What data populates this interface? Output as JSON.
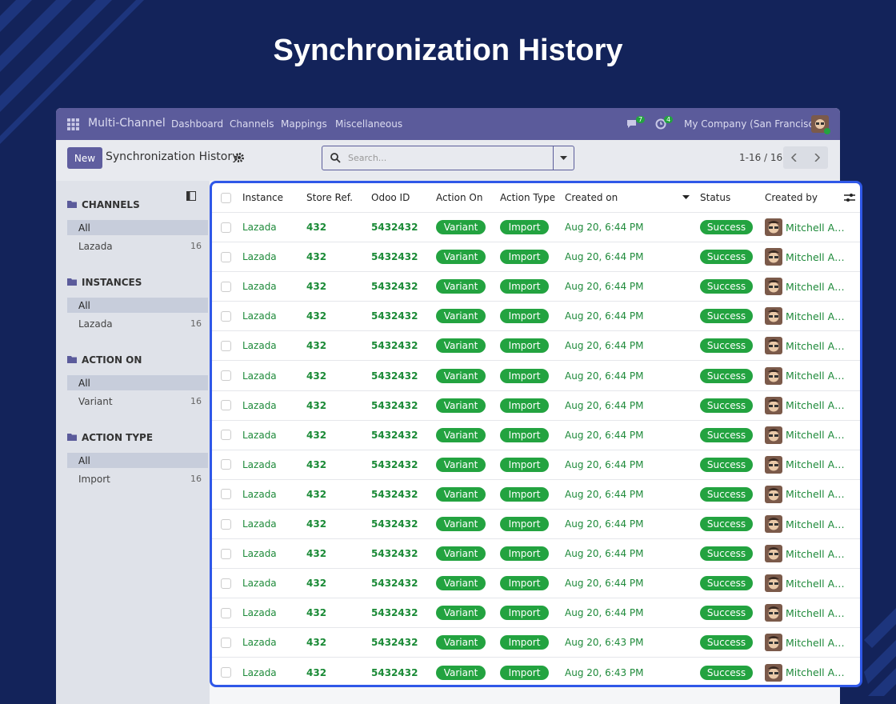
{
  "title": "Synchronization History",
  "navbar": {
    "app": "Multi-Channel",
    "menu": [
      "Dashboard",
      "Channels",
      "Mappings",
      "Miscellaneous"
    ],
    "messages_badge": 7,
    "activities_badge": 4,
    "company": "My Company (San Francisco)"
  },
  "control": {
    "new_button": "New",
    "breadcrumb": "Synchronization History",
    "search_placeholder": "Search...",
    "pager": "1-16 / 16"
  },
  "sidebar": [
    {
      "title": "CHANNELS",
      "items": [
        {
          "label": "All"
        },
        {
          "label": "Lazada",
          "count": 16
        }
      ]
    },
    {
      "title": "INSTANCES",
      "items": [
        {
          "label": "All"
        },
        {
          "label": "Lazada",
          "count": 16
        }
      ]
    },
    {
      "title": "ACTION ON",
      "items": [
        {
          "label": "All"
        },
        {
          "label": "Variant",
          "count": 16
        }
      ]
    },
    {
      "title": "ACTION TYPE",
      "items": [
        {
          "label": "All"
        },
        {
          "label": "Import",
          "count": 16
        }
      ]
    }
  ],
  "table": {
    "columns": [
      "Instance",
      "Store Ref.",
      "Odoo ID",
      "Action On",
      "Action Type",
      "Created on",
      "Status",
      "Created by"
    ],
    "rows": [
      [
        "Lazada",
        "432",
        "5432432",
        "Variant",
        "Import",
        "Aug 20, 6:44 PM",
        "Success",
        "Mitchell A…"
      ],
      [
        "Lazada",
        "432",
        "5432432",
        "Variant",
        "Import",
        "Aug 20, 6:44 PM",
        "Success",
        "Mitchell A…"
      ],
      [
        "Lazada",
        "432",
        "5432432",
        "Variant",
        "Import",
        "Aug 20, 6:44 PM",
        "Success",
        "Mitchell A…"
      ],
      [
        "Lazada",
        "432",
        "5432432",
        "Variant",
        "Import",
        "Aug 20, 6:44 PM",
        "Success",
        "Mitchell A…"
      ],
      [
        "Lazada",
        "432",
        "5432432",
        "Variant",
        "Import",
        "Aug 20, 6:44 PM",
        "Success",
        "Mitchell A…"
      ],
      [
        "Lazada",
        "432",
        "5432432",
        "Variant",
        "Import",
        "Aug 20, 6:44 PM",
        "Success",
        "Mitchell A…"
      ],
      [
        "Lazada",
        "432",
        "5432432",
        "Variant",
        "Import",
        "Aug 20, 6:44 PM",
        "Success",
        "Mitchell A…"
      ],
      [
        "Lazada",
        "432",
        "5432432",
        "Variant",
        "Import",
        "Aug 20, 6:44 PM",
        "Success",
        "Mitchell A…"
      ],
      [
        "Lazada",
        "432",
        "5432432",
        "Variant",
        "Import",
        "Aug 20, 6:44 PM",
        "Success",
        "Mitchell A…"
      ],
      [
        "Lazada",
        "432",
        "5432432",
        "Variant",
        "Import",
        "Aug 20, 6:44 PM",
        "Success",
        "Mitchell A…"
      ],
      [
        "Lazada",
        "432",
        "5432432",
        "Variant",
        "Import",
        "Aug 20, 6:44 PM",
        "Success",
        "Mitchell A…"
      ],
      [
        "Lazada",
        "432",
        "5432432",
        "Variant",
        "Import",
        "Aug 20, 6:44 PM",
        "Success",
        "Mitchell A…"
      ],
      [
        "Lazada",
        "432",
        "5432432",
        "Variant",
        "Import",
        "Aug 20, 6:44 PM",
        "Success",
        "Mitchell A…"
      ],
      [
        "Lazada",
        "432",
        "5432432",
        "Variant",
        "Import",
        "Aug 20, 6:44 PM",
        "Success",
        "Mitchell A…"
      ],
      [
        "Lazada",
        "432",
        "5432432",
        "Variant",
        "Import",
        "Aug 20, 6:43 PM",
        "Success",
        "Mitchell A…"
      ],
      [
        "Lazada",
        "432",
        "5432432",
        "Variant",
        "Import",
        "Aug 20, 6:43 PM",
        "Success",
        "Mitchell A…"
      ]
    ]
  }
}
